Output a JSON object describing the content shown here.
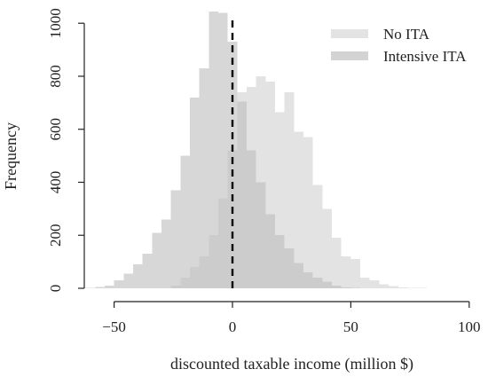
{
  "chart_data": {
    "type": "bar",
    "title": "",
    "xlabel": "discounted taxable income (million $)",
    "ylabel": "Frequency",
    "xlim": [
      -60,
      100
    ],
    "ylim": [
      0,
      1000
    ],
    "x_ticks": [
      "−50",
      "0",
      "50",
      "100"
    ],
    "y_ticks": [
      "0",
      "200",
      "400",
      "600",
      "800",
      "1000"
    ],
    "bin_width": 4,
    "reference_line": {
      "x": 0,
      "style": "dashed",
      "color": "#000000"
    },
    "legend": {
      "position": "top-right"
    },
    "series": [
      {
        "name": "No ITA",
        "color": "#e3e3e3",
        "bins": [
          {
            "x0": -26,
            "x1": -22,
            "count": 10
          },
          {
            "x0": -22,
            "x1": -18,
            "count": 40
          },
          {
            "x0": -18,
            "x1": -14,
            "count": 80
          },
          {
            "x0": -14,
            "x1": -10,
            "count": 120
          },
          {
            "x0": -10,
            "x1": -6,
            "count": 200
          },
          {
            "x0": -6,
            "x1": -2,
            "count": 340
          },
          {
            "x0": -2,
            "x1": 2,
            "count": 520
          },
          {
            "x0": 2,
            "x1": 6,
            "count": 740
          },
          {
            "x0": 6,
            "x1": 10,
            "count": 760
          },
          {
            "x0": 10,
            "x1": 14,
            "count": 800
          },
          {
            "x0": 14,
            "x1": 18,
            "count": 780
          },
          {
            "x0": 18,
            "x1": 22,
            "count": 665
          },
          {
            "x0": 22,
            "x1": 26,
            "count": 740
          },
          {
            "x0": 26,
            "x1": 30,
            "count": 590
          },
          {
            "x0": 30,
            "x1": 34,
            "count": 570
          },
          {
            "x0": 34,
            "x1": 38,
            "count": 390
          },
          {
            "x0": 38,
            "x1": 42,
            "count": 300
          },
          {
            "x0": 42,
            "x1": 46,
            "count": 190
          },
          {
            "x0": 46,
            "x1": 50,
            "count": 120
          },
          {
            "x0": 50,
            "x1": 54,
            "count": 110
          },
          {
            "x0": 54,
            "x1": 58,
            "count": 40
          },
          {
            "x0": 58,
            "x1": 62,
            "count": 30
          },
          {
            "x0": 62,
            "x1": 66,
            "count": 15
          },
          {
            "x0": 66,
            "x1": 70,
            "count": 8
          },
          {
            "x0": 70,
            "x1": 74,
            "count": 4
          },
          {
            "x0": 74,
            "x1": 78,
            "count": 2
          },
          {
            "x0": 78,
            "x1": 82,
            "count": 1
          }
        ]
      },
      {
        "name": "Intensive ITA",
        "color": "#d3d3d3",
        "bins": [
          {
            "x0": -62,
            "x1": -58,
            "count": 2
          },
          {
            "x0": -58,
            "x1": -54,
            "count": 5
          },
          {
            "x0": -54,
            "x1": -50,
            "count": 10
          },
          {
            "x0": -50,
            "x1": -46,
            "count": 30
          },
          {
            "x0": -46,
            "x1": -42,
            "count": 55
          },
          {
            "x0": -42,
            "x1": -38,
            "count": 90
          },
          {
            "x0": -38,
            "x1": -34,
            "count": 130
          },
          {
            "x0": -34,
            "x1": -30,
            "count": 210
          },
          {
            "x0": -30,
            "x1": -26,
            "count": 260
          },
          {
            "x0": -26,
            "x1": -22,
            "count": 370
          },
          {
            "x0": -22,
            "x1": -18,
            "count": 500
          },
          {
            "x0": -18,
            "x1": -14,
            "count": 720
          },
          {
            "x0": -14,
            "x1": -10,
            "count": 830
          },
          {
            "x0": -10,
            "x1": -6,
            "count": 1045
          },
          {
            "x0": -6,
            "x1": -2,
            "count": 1040
          },
          {
            "x0": -2,
            "x1": 2,
            "count": 930
          },
          {
            "x0": 2,
            "x1": 6,
            "count": 705
          },
          {
            "x0": 6,
            "x1": 10,
            "count": 520
          },
          {
            "x0": 10,
            "x1": 14,
            "count": 400
          },
          {
            "x0": 14,
            "x1": 18,
            "count": 280
          },
          {
            "x0": 18,
            "x1": 22,
            "count": 200
          },
          {
            "x0": 22,
            "x1": 26,
            "count": 150
          },
          {
            "x0": 26,
            "x1": 30,
            "count": 95
          },
          {
            "x0": 30,
            "x1": 34,
            "count": 60
          },
          {
            "x0": 34,
            "x1": 38,
            "count": 40
          },
          {
            "x0": 38,
            "x1": 42,
            "count": 25
          },
          {
            "x0": 42,
            "x1": 46,
            "count": 10
          },
          {
            "x0": 46,
            "x1": 50,
            "count": 4
          },
          {
            "x0": 50,
            "x1": 54,
            "count": 2
          }
        ]
      }
    ]
  }
}
